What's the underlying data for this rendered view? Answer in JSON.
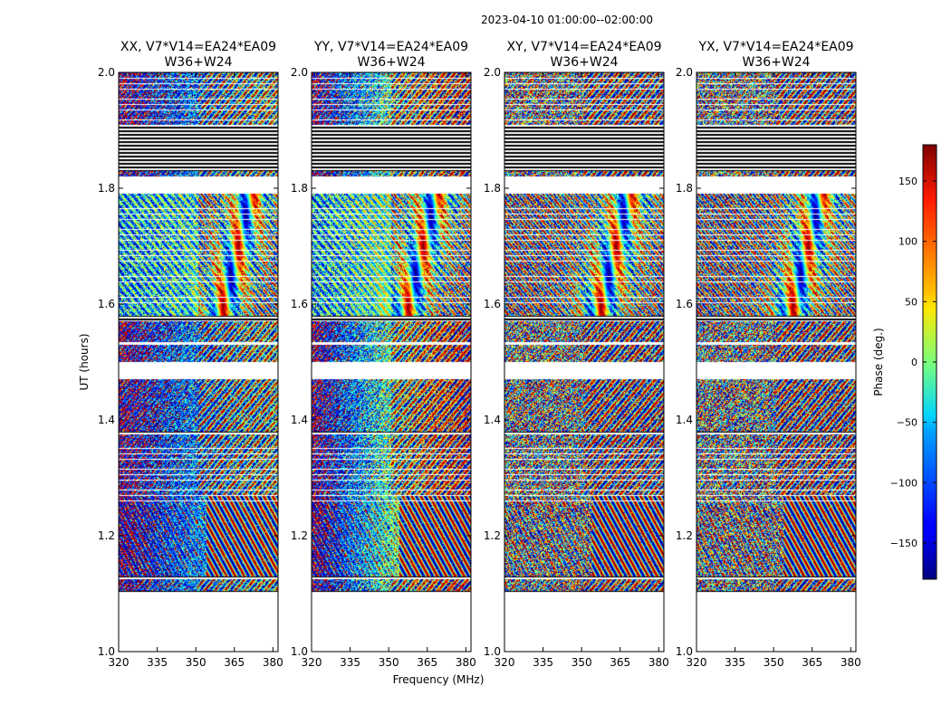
{
  "figure": {
    "suptitle": "2023-04-10  01:00:00--02:00:00",
    "ylabel": "UT (hours)",
    "xlabel": "Frequency (MHz)"
  },
  "chart_data": {
    "type": "heatmap",
    "x_range": [
      320,
      382
    ],
    "y_range": [
      1.0,
      2.0
    ],
    "x_ticks": [
      "320",
      "335",
      "350",
      "365",
      "380"
    ],
    "y_ticks": [
      "1.0",
      "1.2",
      "1.4",
      "1.6",
      "1.8",
      "2.0"
    ],
    "x_tick_values": [
      320,
      335,
      350,
      365,
      380
    ],
    "y_tick_values": [
      1.0,
      1.2,
      1.4,
      1.6,
      1.8,
      2.0
    ],
    "panels": [
      {
        "title_line1": "XX, V7*V14=EA24*EA09",
        "title_line2": "W36+W24",
        "pol": "XX"
      },
      {
        "title_line1": "YY, V7*V14=EA24*EA09",
        "title_line2": "W36+W24",
        "pol": "YY"
      },
      {
        "title_line1": "XY, V7*V14=EA24*EA09",
        "title_line2": "W36+W24",
        "pol": "XY"
      },
      {
        "title_line1": "YX, V7*V14=EA24*EA09",
        "title_line2": "W36+W24",
        "pol": "YX"
      }
    ],
    "colorbar": {
      "label": "Phase (deg.)",
      "range": [
        -180,
        180
      ],
      "ticks": [
        "150",
        "100",
        "50",
        "0",
        "−50",
        "−100",
        "−150"
      ],
      "tick_values": [
        150,
        100,
        50,
        0,
        -50,
        -100,
        -150
      ],
      "colormap": "jet"
    },
    "empty_time_ranges": [
      [
        1.0,
        1.1
      ],
      [
        1.47,
        1.5
      ],
      [
        1.53,
        1.535
      ],
      [
        1.79,
        1.82
      ]
    ],
    "flagged_time_ranges": [
      [
        1.1,
        1.105
      ],
      [
        1.125,
        1.13
      ],
      [
        1.375,
        1.38
      ],
      [
        1.57,
        1.58
      ],
      [
        1.83,
        1.91
      ]
    ]
  }
}
